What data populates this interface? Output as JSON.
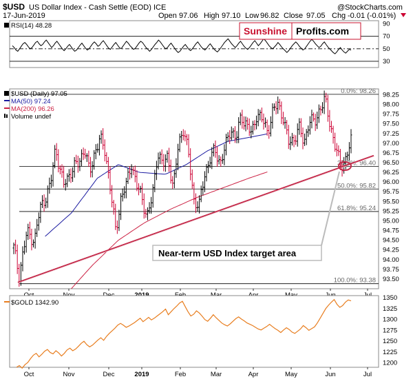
{
  "header": {
    "symbol": "$USD",
    "name": "US Dollar Index - Cash Settle (EOD) ICE",
    "date": "17-Jun-2019",
    "open_label": "Open",
    "open": "97.06",
    "high_label": "High",
    "high": "97.10",
    "low_label": "Low",
    "low": "96.82",
    "close_label": "Close",
    "close": "97.05",
    "chg_label": "Chg",
    "chg": "-0.01 (-0.01%)",
    "watermark": "@StockCharts.com"
  },
  "logo": {
    "part1": "Sunshine",
    "part2": "Profits.com"
  },
  "callout": {
    "text": "Near-term USD Index target area"
  },
  "colors": {
    "price": "#000000",
    "down_bar": "#cc0033",
    "ma50": "#1a1aa0",
    "ma200": "#cc2244",
    "trendline": "#c42a4a",
    "gold": "#e87d1e",
    "rsi": "#000000",
    "logo_red": "#c8102e"
  },
  "chart_data": [
    {
      "type": "line",
      "panel": "rsi",
      "legend": "RSI(14) 48.28",
      "ylim": [
        20,
        95
      ],
      "y_ticks": [
        "90",
        "70",
        "50",
        "30"
      ],
      "guides": [
        70,
        50,
        30
      ],
      "y": [
        55,
        52,
        48,
        46,
        50,
        54,
        58,
        60,
        57,
        53,
        50,
        52,
        56,
        60,
        62,
        58,
        55,
        57,
        61,
        64,
        60,
        56,
        52,
        55,
        59,
        62,
        58,
        54,
        50,
        47,
        50,
        54,
        57,
        53,
        49,
        46,
        48,
        52,
        56,
        59,
        55,
        51,
        48,
        50,
        54,
        58,
        61,
        58,
        54,
        56,
        60,
        63,
        59,
        55,
        51,
        49,
        53,
        57,
        60,
        56,
        52,
        50,
        54,
        58,
        62,
        59,
        55,
        52,
        49,
        51,
        55,
        59,
        62,
        60,
        56,
        52,
        49,
        46,
        49,
        53,
        57,
        60,
        64,
        61,
        57,
        53,
        50,
        52,
        56,
        59,
        55,
        51,
        47,
        44,
        46,
        50,
        54,
        57,
        53,
        49,
        47,
        50,
        54,
        58,
        61,
        57,
        53,
        50,
        48,
        51,
        55,
        58,
        54,
        50,
        47,
        45,
        48,
        52,
        56,
        60,
        63,
        66,
        62,
        58,
        55,
        52,
        55,
        59,
        62,
        58,
        54,
        51,
        49,
        52,
        56,
        60,
        63,
        59,
        55,
        58,
        62,
        66,
        63,
        59,
        55,
        52,
        50,
        53,
        56,
        60,
        57,
        53,
        50,
        47,
        44,
        47,
        51,
        55,
        58,
        61,
        58,
        54,
        51,
        48,
        50,
        54,
        58,
        62,
        65,
        62,
        58,
        55,
        52,
        54,
        58,
        61,
        57,
        53,
        50,
        47,
        44,
        42,
        45,
        49,
        52,
        48,
        45,
        43,
        46,
        49,
        48
      ]
    },
    {
      "type": "line",
      "panel": "usd",
      "legend": "$USD (Daily) 97.05",
      "ylim": [
        93.25,
        98.4
      ],
      "y_ticks": [
        "98.25",
        "98.00",
        "97.75",
        "97.50",
        "97.25",
        "97.00",
        "96.75",
        "96.50",
        "96.25",
        "96.00",
        "95.75",
        "95.50",
        "95.25",
        "95.00",
        "94.75",
        "94.50",
        "94.25",
        "94.00",
        "93.75",
        "93.50"
      ],
      "x_ticks": [
        "Oct",
        "Nov",
        "Dec",
        "2019",
        "Feb",
        "Mar",
        "Apr",
        "May",
        "Jun",
        "Jul"
      ],
      "series": [
        {
          "name": "MA(50) 97.24",
          "anchors": [
            [
              0.12,
              94.6
            ],
            [
              0.22,
              95.2
            ],
            [
              0.32,
              96.1
            ],
            [
              0.4,
              96.45
            ],
            [
              0.48,
              96.25
            ],
            [
              0.58,
              96.2
            ],
            [
              0.66,
              96.45
            ],
            [
              0.74,
              96.8
            ],
            [
              0.82,
              97.05
            ],
            [
              0.9,
              97.15
            ],
            [
              0.97,
              97.24
            ]
          ]
        },
        {
          "name": "MA(200) 96.26",
          "anchors": [
            [
              0.22,
              93.25
            ],
            [
              0.3,
              93.85
            ],
            [
              0.4,
              94.5
            ],
            [
              0.5,
              94.95
            ],
            [
              0.6,
              95.3
            ],
            [
              0.7,
              95.6
            ],
            [
              0.8,
              95.85
            ],
            [
              0.9,
              96.1
            ],
            [
              0.97,
              96.26
            ]
          ]
        }
      ],
      "price_anchors": [
        [
          0.0,
          94.3
        ],
        [
          0.02,
          93.6
        ],
        [
          0.05,
          94.7
        ],
        [
          0.08,
          94.5
        ],
        [
          0.1,
          95.3
        ],
        [
          0.14,
          95.9
        ],
        [
          0.16,
          96.9
        ],
        [
          0.19,
          95.9
        ],
        [
          0.22,
          96.3
        ],
        [
          0.25,
          96.5
        ],
        [
          0.27,
          96.9
        ],
        [
          0.29,
          96.2
        ],
        [
          0.31,
          96.8
        ],
        [
          0.33,
          97.1
        ],
        [
          0.35,
          96.8
        ],
        [
          0.37,
          95.8
        ],
        [
          0.39,
          94.7
        ],
        [
          0.41,
          95.6
        ],
        [
          0.43,
          95.9
        ],
        [
          0.45,
          96.5
        ],
        [
          0.47,
          95.9
        ],
        [
          0.49,
          95.6
        ],
        [
          0.51,
          95.1
        ],
        [
          0.53,
          95.6
        ],
        [
          0.55,
          96.8
        ],
        [
          0.57,
          96.4
        ],
        [
          0.59,
          96.7
        ],
        [
          0.61,
          95.8
        ],
        [
          0.63,
          97.0
        ],
        [
          0.65,
          97.4
        ],
        [
          0.67,
          96.6
        ],
        [
          0.69,
          95.5
        ],
        [
          0.71,
          95.4
        ],
        [
          0.73,
          96.2
        ],
        [
          0.75,
          96.6
        ],
        [
          0.77,
          96.8
        ],
        [
          0.79,
          96.5
        ],
        [
          0.81,
          96.9
        ],
        [
          0.83,
          97.4
        ],
        [
          0.85,
          97.1
        ],
        [
          0.87,
          97.7
        ],
        [
          0.89,
          97.5
        ],
        [
          0.91,
          97.2
        ],
        [
          0.93,
          97.8
        ],
        [
          0.95,
          97.6
        ],
        [
          0.97,
          97.3
        ],
        [
          0.99,
          97.8
        ],
        [
          1.01,
          98.0
        ],
        [
          1.03,
          97.7
        ],
        [
          1.05,
          97.0
        ],
        [
          1.07,
          97.1
        ],
        [
          1.09,
          97.4
        ],
        [
          1.11,
          97.0
        ],
        [
          1.13,
          97.6
        ],
        [
          1.15,
          97.5
        ],
        [
          1.17,
          97.9
        ],
        [
          1.19,
          98.1
        ],
        [
          1.21,
          97.5
        ],
        [
          1.23,
          96.9
        ],
        [
          1.25,
          96.4
        ],
        [
          1.27,
          96.6
        ],
        [
          1.29,
          97.05
        ]
      ],
      "fib_levels": [
        {
          "label": "0.0%: 98.26",
          "value": 98.26
        },
        {
          "label": "38.2%: 96.40",
          "value": 96.4
        },
        {
          "label": "50.0%: 95.82",
          "value": 95.82
        },
        {
          "label": "61.8%: 95.24",
          "value": 95.24
        },
        {
          "label": "100.0%: 93.38",
          "value": 93.38
        }
      ],
      "ma_labels": [
        "MA(50) 97.24",
        "MA(200) 96.26"
      ],
      "volume_label": "Volume undef"
    },
    {
      "type": "line",
      "panel": "gold",
      "legend": "$GOLD 1342.90",
      "ylim": [
        1190,
        1355
      ],
      "y_ticks": [
        "1350",
        "1325",
        "1300",
        "1275",
        "1250",
        "1225",
        "1200"
      ],
      "y": [
        1190,
        1194,
        1188,
        1196,
        1201,
        1210,
        1218,
        1222,
        1214,
        1220,
        1227,
        1231,
        1224,
        1221,
        1228,
        1223,
        1216,
        1222,
        1230,
        1234,
        1228,
        1232,
        1238,
        1245,
        1250,
        1242,
        1237,
        1241,
        1247,
        1253,
        1258,
        1252,
        1261,
        1268,
        1274,
        1280,
        1287,
        1291,
        1287,
        1282,
        1285,
        1289,
        1293,
        1298,
        1303,
        1295,
        1300,
        1305,
        1299,
        1303,
        1308,
        1313,
        1318,
        1324,
        1311,
        1318,
        1325,
        1331,
        1338,
        1342,
        1330,
        1318,
        1308,
        1312,
        1320,
        1315,
        1308,
        1300,
        1296,
        1303,
        1311,
        1304,
        1298,
        1292,
        1288,
        1285,
        1290,
        1296,
        1302,
        1306,
        1301,
        1297,
        1292,
        1289,
        1286,
        1282,
        1278,
        1276,
        1280,
        1284,
        1289,
        1284,
        1279,
        1275,
        1270,
        1276,
        1281,
        1277,
        1271,
        1268,
        1273,
        1278,
        1286,
        1281,
        1275,
        1279,
        1283,
        1292,
        1303,
        1314,
        1325,
        1333,
        1340,
        1346,
        1335,
        1328,
        1332,
        1340,
        1345,
        1342.9
      ]
    }
  ]
}
